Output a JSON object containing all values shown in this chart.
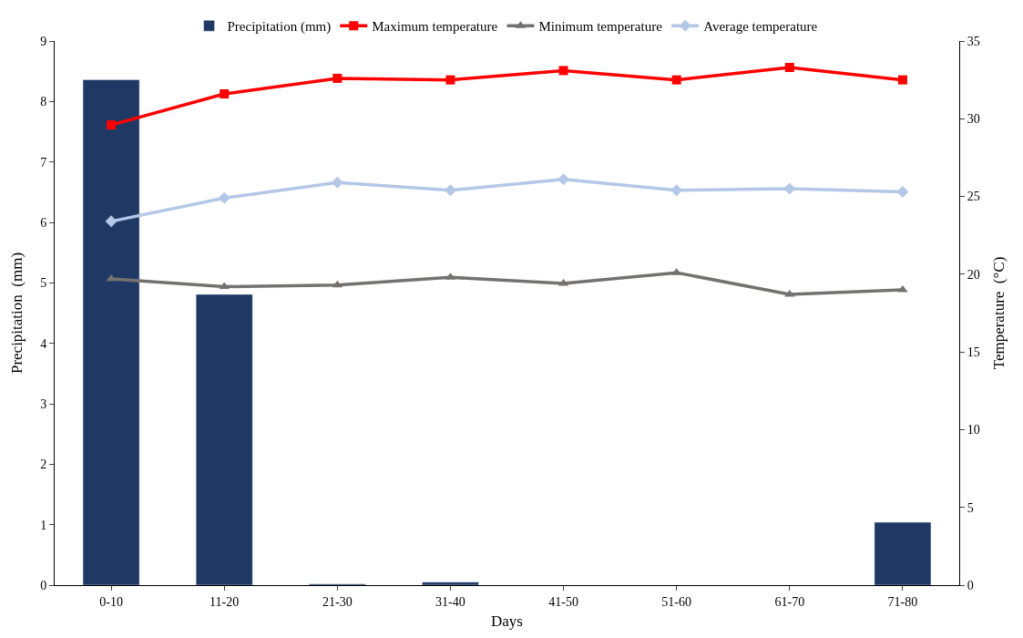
{
  "chart_data": {
    "type": "bar",
    "xlabel": "Days",
    "ylabel": "Precipitation  (mm)",
    "y2label": "Temperature  (°C)",
    "categories": [
      "0-10",
      "11-20",
      "21-30",
      "31-40",
      "41-50",
      "51-60",
      "61-70",
      "71-80"
    ],
    "series": [
      {
        "name": "Precipitation (mm)",
        "color": "#1f3864",
        "values": [
          8.36,
          4.81,
          0.02,
          0.05,
          null,
          null,
          null,
          1.04
        ]
      },
      {
        "name": "Maximum temperature",
        "type": "line",
        "axis": "y2",
        "marker": "square",
        "color": "#ff0000",
        "values": [
          29.6,
          31.6,
          32.6,
          32.5,
          33.1,
          32.5,
          33.3,
          32.5
        ]
      },
      {
        "name": "Minimum temperature",
        "type": "line",
        "axis": "y2",
        "marker": "triangle",
        "color": "#767171",
        "values": [
          19.7,
          19.2,
          19.3,
          19.8,
          19.4,
          20.1,
          18.7,
          19.0
        ]
      },
      {
        "name": "Average temperature",
        "type": "line",
        "axis": "y2",
        "marker": "diamond",
        "color": "#b4c7e7",
        "values": [
          23.4,
          24.9,
          25.9,
          25.4,
          26.1,
          25.4,
          25.5,
          25.3
        ]
      }
    ],
    "ylim": [
      0,
      9
    ],
    "yticks": [
      0,
      1,
      2,
      3,
      4,
      5,
      6,
      7,
      8,
      9
    ],
    "y2lim": [
      0,
      35
    ],
    "y2ticks": [
      0,
      5,
      10,
      15,
      20,
      25,
      30,
      35
    ],
    "legend": "top"
  }
}
